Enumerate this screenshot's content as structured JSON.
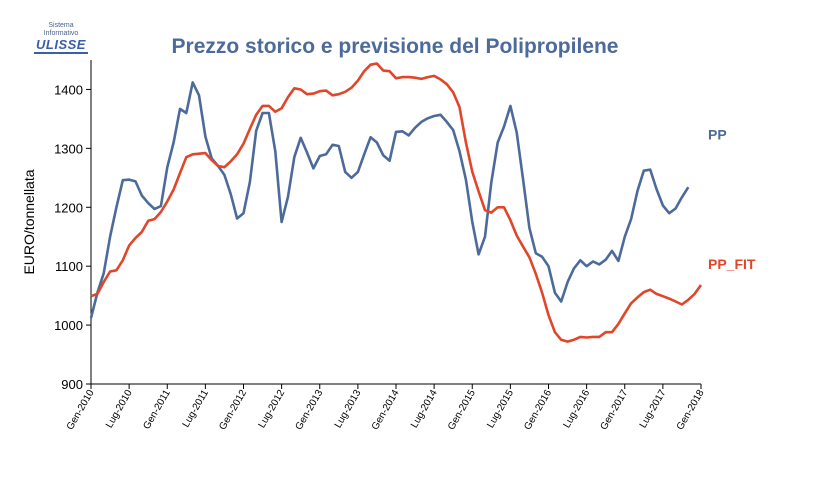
{
  "logo": {
    "line1": "Sistema",
    "line2": "Informativo",
    "line3": "ULISSE"
  },
  "chart_data": {
    "type": "line",
    "title": "Prezzo storico e previsione del Polipropilene",
    "ylabel": "EURO/tonnellata",
    "xlabel": "",
    "ylim": [
      900,
      1450
    ],
    "yticks": [
      900,
      1000,
      1100,
      1200,
      1300,
      1400
    ],
    "x_start_month_index": 0,
    "x_end_month_index": 96,
    "x_tick_labels": [
      "Gen-2010",
      "Lug-2010",
      "Gen-2011",
      "Lug-2011",
      "Gen-2012",
      "Lug-2012",
      "Gen-2013",
      "Lug-2013",
      "Gen-2014",
      "Lug-2014",
      "Gen-2015",
      "Lug-2015",
      "Gen-2016",
      "Lug-2016",
      "Gen-2017",
      "Lug-2017",
      "Gen-2018"
    ],
    "colors": {
      "PP": "#4c6a9a",
      "PP_FIT": "#e0462a"
    },
    "series": [
      {
        "name": "PP",
        "values": [
          1012,
          1055,
          1088,
          1150,
          1200,
          1246,
          1247,
          1244,
          1220,
          1207,
          1197,
          1202,
          1268,
          1310,
          1367,
          1360,
          1412,
          1390,
          1320,
          1283,
          1270,
          1255,
          1222,
          1181,
          1190,
          1243,
          1330,
          1360,
          1360,
          1295,
          1175,
          1218,
          1285,
          1318,
          1293,
          1266,
          1287,
          1290,
          1306,
          1304,
          1260,
          1250,
          1260,
          1290,
          1319,
          1310,
          1288,
          1279,
          1328,
          1329,
          1322,
          1335,
          1345,
          1351,
          1355,
          1357,
          1345,
          1331,
          1295,
          1247,
          1175,
          1120,
          1150,
          1242,
          1310,
          1337,
          1372,
          1327,
          1247,
          1165,
          1122,
          1116,
          1100,
          1055,
          1040,
          1073,
          1096,
          1110,
          1100,
          1108,
          1103,
          1111,
          1126,
          1109,
          1150,
          1180,
          1228,
          1262,
          1264,
          1231,
          1203,
          1190,
          1198,
          1217,
          1234
        ],
        "first_month_index": 0
      },
      {
        "name": "PP_FIT",
        "values": [
          1049,
          1053,
          1073,
          1091,
          1093,
          1110,
          1135,
          1148,
          1158,
          1177,
          1180,
          1192,
          1210,
          1230,
          1258,
          1285,
          1290,
          1291,
          1292,
          1280,
          1270,
          1268,
          1278,
          1290,
          1308,
          1333,
          1357,
          1372,
          1372,
          1362,
          1368,
          1387,
          1402,
          1400,
          1392,
          1393,
          1397,
          1398,
          1390,
          1392,
          1396,
          1403,
          1415,
          1431,
          1442,
          1444,
          1432,
          1431,
          1419,
          1421,
          1421,
          1420,
          1418,
          1421,
          1423,
          1417,
          1409,
          1395,
          1370,
          1310,
          1260,
          1227,
          1195,
          1191,
          1200,
          1200,
          1178,
          1152,
          1133,
          1115,
          1087,
          1055,
          1017,
          988,
          975,
          972,
          975,
          980,
          979,
          980,
          980,
          988,
          988,
          1002,
          1020,
          1037,
          1047,
          1056,
          1060,
          1053,
          1049,
          1045,
          1040,
          1035,
          1043,
          1053,
          1068
        ],
        "first_month_index": 0
      }
    ]
  }
}
